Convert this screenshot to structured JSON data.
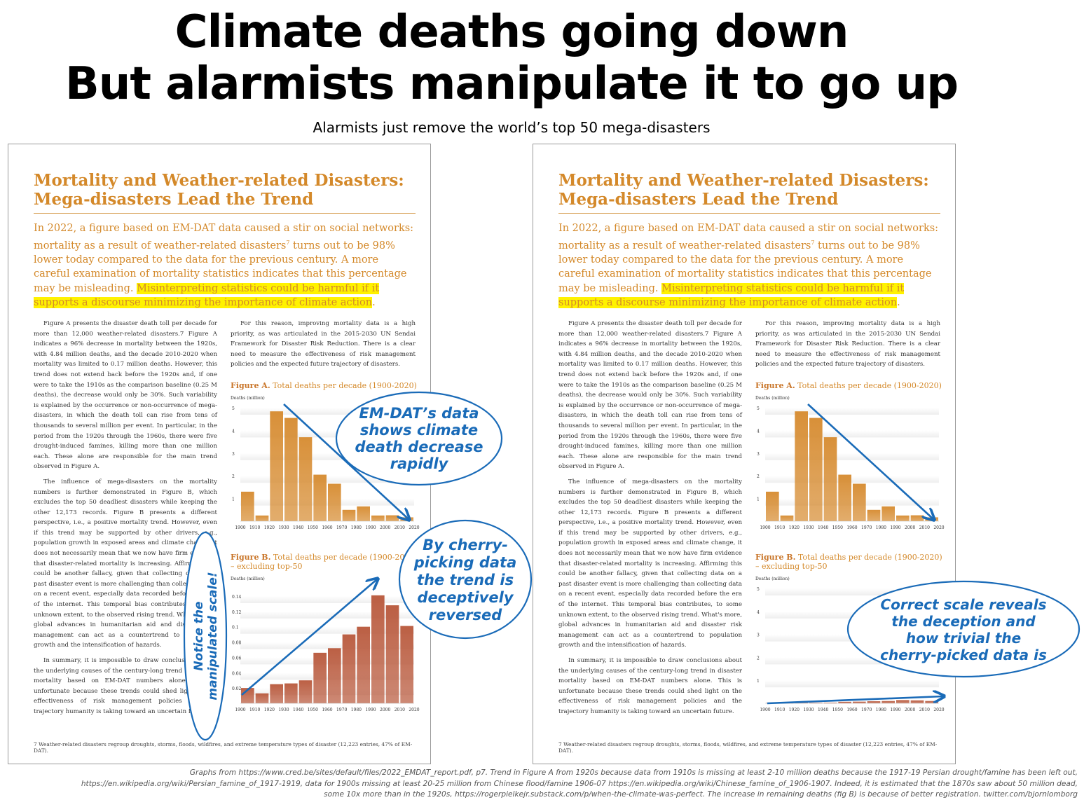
{
  "title_line1": "Climate deaths going down",
  "title_line2": "But alarmists manipulate it to go up",
  "subtitle": "Alarmists just remove the world’s top 50 mega-disasters",
  "page": {
    "heading_line1": "Mortality and Weather-related Disasters:",
    "heading_line2": "Mega-disasters Lead the Trend",
    "intro_plain": "In 2022, a figure based on EM-DAT data caused a stir on social networks: mortality as a result of weather-related disasters",
    "intro_sup": "7",
    "intro_plain2": " turns out to be 98% lower today compared to the data for the previous century. A more careful examination of mortality statistics indicates that this percentage may be misleading. ",
    "intro_highlight": "Misinterpreting statistics could be harmful if it supports a discourse minimizing the importance of climate action",
    "intro_end": ".",
    "left_p1": "Figure A presents the disaster death toll per decade for more than 12,000 weather-related disasters.7 Figure A indicates a 96% decrease in mortality between the 1920s, with 4.84 million deaths, and the decade 2010-2020 when mortality was limited to 0.17 million deaths. However, this trend does not extend back before the 1920s and, if one were to take the 1910s as the comparison baseline (0.25 M deaths), the decrease would only be 30%. Such variability is explained by the occurrence or non-occurrence of mega-disasters, in which the death toll can rise from tens of thousands to several million per event. In particular, in the period from the 1920s through the 1960s, there were five drought-induced famines, killing more than one million each. These alone are responsible for the main trend observed in Figure A.",
    "left_p2": "The influence of mega-disasters on the mortality numbers is further demonstrated in Figure B, which excludes the top 50 deadliest disasters while keeping the other 12,173 records. Figure B presents a different perspective, i.e., a positive mortality trend. However, even if this trend may be supported by other drivers, e.g., population growth in exposed areas and climate change, it does not necessarily mean that we now have firm evidence that disaster-related mortality is increasing. Affirming this could be another fallacy, given that collecting data on a past disaster event is more challenging than collecting data on a recent event, especially data recorded before the era of the internet. This temporal bias contributes, to some unknown extent, to the observed rising trend. What's more, global advances in humanitarian aid and disaster risk management can act as a countertrend to population growth and the intensification of hazards.",
    "left_p3": "In summary, it is impossible to draw conclusions about the underlying causes of the century-long trend in disaster mortality based on EM-DAT numbers alone. This is unfortunate because these trends could shed light on the effectiveness of risk management policies and the trajectory humanity is taking toward an uncertain future.",
    "right_p1": "For this reason, improving mortality data is a high priority, as was articulated in the 2015-2030 UN Sendai Framework for Disaster Risk Reduction. There is a clear need to measure the effectiveness of risk management policies and the expected future trajectory of disasters.",
    "figA_label": "Figure A.",
    "figA_title": " Total deaths per decade (1900-2020)",
    "figB_label": "Figure B.",
    "figB_title": " Total deaths per decade (1900-2020) – excluding top-50",
    "y_axis_label": "Deaths (million)",
    "footnote": "7   Weather-related disasters regroup droughts, storms, floods, wildfires, and extreme temperature types of disaster (12,223 entries, 47% of EM-DAT)."
  },
  "annotations": {
    "bubble1": [
      "EM-DAT’s data",
      "shows climate",
      "death decrease",
      "rapidly"
    ],
    "bubble2": [
      "By cherry-",
      "picking data",
      "the trend is",
      "deceptively",
      "reversed"
    ],
    "bubble3": [
      "Correct scale reveals",
      "the deception and",
      "how trivial the",
      "cherry-picked data is"
    ],
    "vertical": [
      "Notice the",
      "manipulated scale!"
    ],
    "ink_color": "#1a6bb8"
  },
  "credits": [
    "Graphs from https://www.cred.be/sites/default/files/2022_EMDAT_report.pdf, p7. Trend in Figure A from 1920s because data from 1910s is missing at least 2-10 million deaths because the 1917-19 Persian drought/famine has been left out,",
    "https://en.wikipedia.org/wiki/Persian_famine_of_1917-1919, data for 1900s missing at least 20-25 million from Chinese flood/famine 1906-07 https://en.wikipedia.org/wiki/Chinese_famine_of_1906-1907. Indeed, it is estimated that the 1870s saw about 50 million dead,",
    "some 10x more than in the 1920s, https://rogerpielkejr.substack.com/p/when-the-climate-was-perfect. The increase in remaining deaths (fig B) is because of better registration. twitter.com/bjornlomborg"
  ],
  "chart_data": [
    {
      "type": "bar",
      "title": "Figure A. Total deaths per decade (1900-2020)",
      "ylabel": "Deaths (million)",
      "categories": [
        "1900",
        "1910",
        "1920",
        "1930",
        "1940",
        "1950",
        "1960",
        "1970",
        "1980",
        "1990",
        "2000",
        "2010"
      ],
      "x_tick_labels": [
        "1900",
        "1910",
        "1920",
        "1930",
        "1940",
        "1950",
        "1960",
        "1970",
        "1980",
        "1990",
        "2000",
        "2010",
        "2020"
      ],
      "values": [
        1.3,
        0.25,
        4.84,
        4.55,
        3.7,
        2.05,
        1.65,
        0.5,
        0.65,
        0.25,
        0.26,
        0.17
      ],
      "ylim": [
        0,
        5
      ],
      "yticks": [
        1,
        2,
        3,
        4,
        5
      ],
      "color": "#d68a2e"
    },
    {
      "type": "bar",
      "title": "Figure B. Total deaths per decade (1900-2020) – excluding top-50",
      "ylabel": "Deaths (million)",
      "categories": [
        "1900",
        "1910",
        "1920",
        "1930",
        "1940",
        "1950",
        "1960",
        "1970",
        "1980",
        "1990",
        "2000",
        "2010"
      ],
      "x_tick_labels": [
        "1900",
        "1910",
        "1920",
        "1930",
        "1940",
        "1950",
        "1960",
        "1970",
        "1980",
        "1990",
        "2000",
        "2010",
        "2020"
      ],
      "values": [
        0.02,
        0.013,
        0.025,
        0.026,
        0.03,
        0.066,
        0.072,
        0.09,
        0.1,
        0.141,
        0.128,
        0.101
      ],
      "ylim": [
        0,
        0.15
      ],
      "yticks": [
        0.02,
        0.04,
        0.06,
        0.08,
        0.1,
        0.12,
        0.14
      ],
      "color": "#b8573a"
    },
    {
      "type": "bar",
      "title": "Figure B. Total deaths per decade (1900-2020) – excluding top-50",
      "ylabel": "Deaths (million)",
      "categories": [
        "1900",
        "1910",
        "1920",
        "1930",
        "1940",
        "1950",
        "1960",
        "1970",
        "1980",
        "1990",
        "2000",
        "2010"
      ],
      "x_tick_labels": [
        "1900",
        "1910",
        "1920",
        "1930",
        "1940",
        "1950",
        "1960",
        "1970",
        "1980",
        "1990",
        "2000",
        "2010",
        "2020"
      ],
      "values": [
        0.02,
        0.013,
        0.025,
        0.026,
        0.03,
        0.066,
        0.072,
        0.09,
        0.1,
        0.141,
        0.128,
        0.101
      ],
      "ylim": [
        0,
        5
      ],
      "yticks": [
        1,
        2,
        3,
        4,
        5
      ],
      "color": "#b8573a"
    }
  ]
}
